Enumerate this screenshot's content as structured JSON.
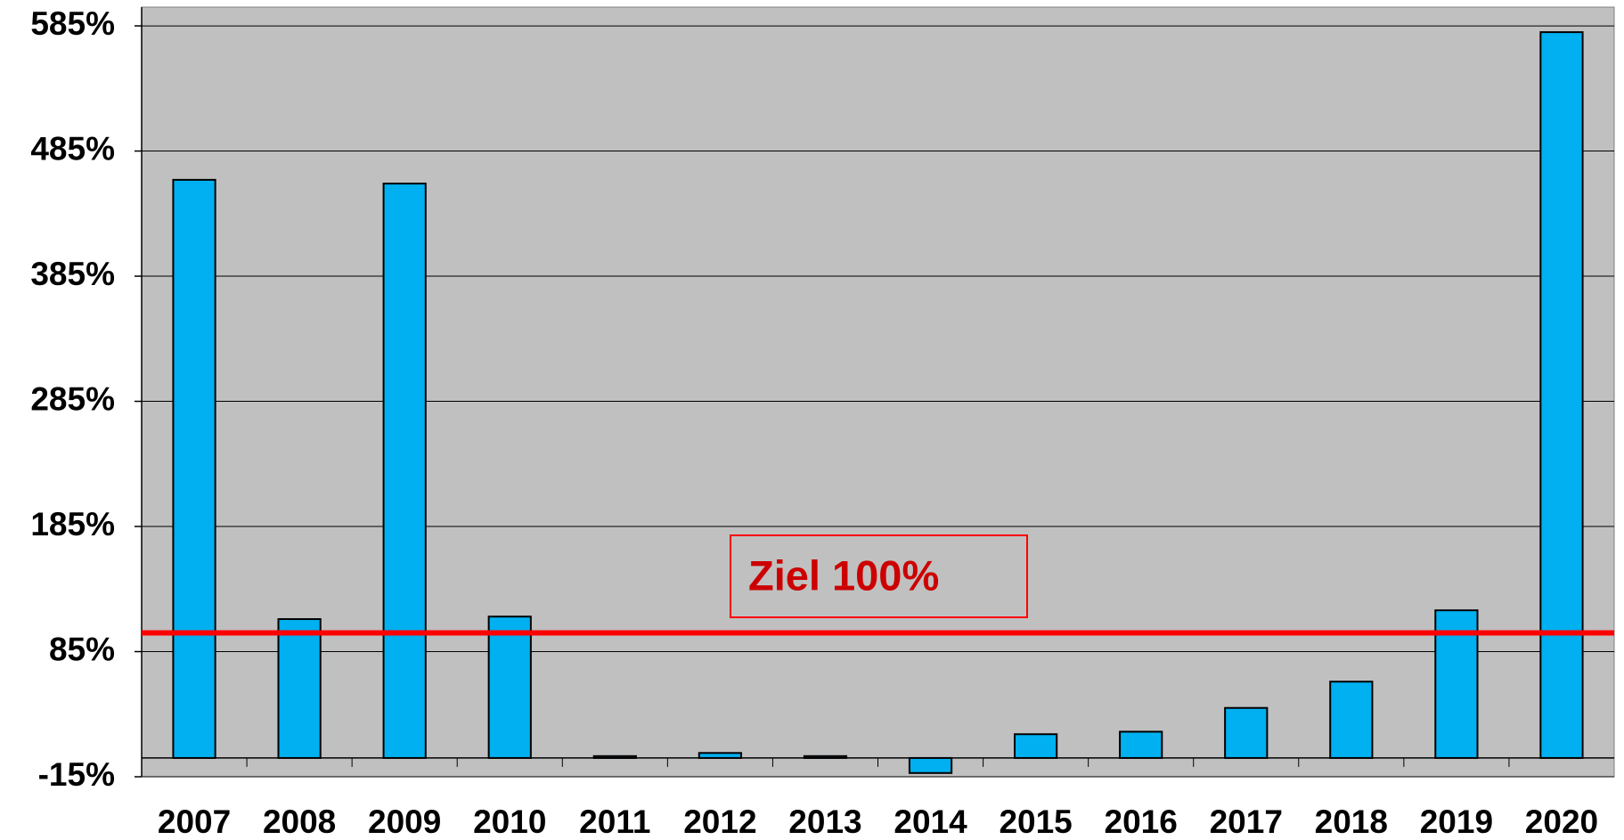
{
  "chart_data": {
    "type": "bar",
    "categories": [
      "2007",
      "2008",
      "2009",
      "2010",
      "2011",
      "2012",
      "2013",
      "2014",
      "2015",
      "2016",
      "2017",
      "2018",
      "2019",
      "2020"
    ],
    "values": [
      462,
      111,
      459,
      113,
      1.5,
      4,
      1.5,
      -12,
      19,
      21,
      40,
      61,
      118,
      580
    ],
    "color": "#00b0f0",
    "ylim": [
      -15,
      600
    ],
    "yticks": [
      {
        "value": -15,
        "label": "-15%"
      },
      {
        "value": 85,
        "label": "85%"
      },
      {
        "value": 185,
        "label": "185%"
      },
      {
        "value": 285,
        "label": "285%"
      },
      {
        "value": 385,
        "label": "385%"
      },
      {
        "value": 485,
        "label": "485%"
      },
      {
        "value": 585,
        "label": "585%"
      }
    ],
    "grid": true,
    "reference_line": {
      "value": 100,
      "label": "Ziel 100%",
      "color": "#ff0000"
    }
  }
}
